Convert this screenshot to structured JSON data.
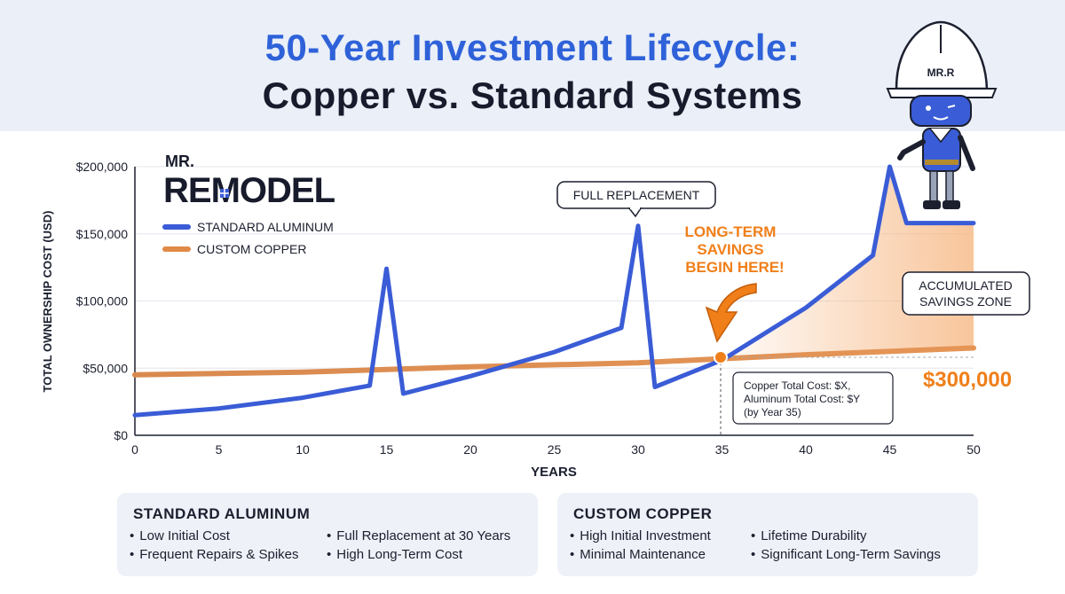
{
  "title": {
    "line1": "50-Year Investment Lifecycle:",
    "line2": "Copper vs. Standard Systems"
  },
  "brand": {
    "logo_top": "MR.",
    "logo_main": "REMODEL",
    "mascot_helmet_text": "MR.R"
  },
  "colors": {
    "aluminum": "#3a5cd6",
    "copper": "#e08a47",
    "accent_orange": "#f07f1a",
    "savings_fill": "#f6b27a",
    "title_blue": "#2f62d9"
  },
  "chart_data": {
    "type": "line",
    "xlabel": "YEARS",
    "ylabel": "TOTAL OWNERSHIP COST (USD)",
    "xlim": [
      0,
      50
    ],
    "ylim": [
      0,
      200000
    ],
    "x_ticks": [
      "0",
      "5",
      "10",
      "15",
      "20",
      "25",
      "30",
      "35",
      "40",
      "45",
      "50"
    ],
    "y_ticks": [
      "$0",
      "$50,000",
      "$100,000",
      "$150,000",
      "$200,000"
    ],
    "grid": "horizontal",
    "legend": "top-left",
    "series": [
      {
        "name": "STANDARD ALUMINUM",
        "points": [
          [
            0,
            15000
          ],
          [
            5,
            20000
          ],
          [
            10,
            28000
          ],
          [
            14,
            37000
          ],
          [
            15,
            124000
          ],
          [
            16,
            31000
          ],
          [
            20,
            44000
          ],
          [
            25,
            62000
          ],
          [
            29,
            80000
          ],
          [
            30,
            156000
          ],
          [
            31,
            36000
          ],
          [
            35,
            56000
          ],
          [
            40,
            95000
          ],
          [
            44,
            134000
          ],
          [
            45,
            200000
          ],
          [
            46,
            158000
          ],
          [
            50,
            158000
          ]
        ]
      },
      {
        "name": "CUSTOM COPPER",
        "points": [
          [
            0,
            45000
          ],
          [
            10,
            47000
          ],
          [
            20,
            51000
          ],
          [
            30,
            54000
          ],
          [
            35,
            57000
          ],
          [
            40,
            60000
          ],
          [
            50,
            65000
          ]
        ]
      }
    ],
    "annotations": {
      "full_replacement": "FULL REPLACEMENT",
      "savings_begin": "LONG-TERM SAVINGS BEGIN HERE!",
      "savings_zone": "ACCUMULATED SAVINGS ZONE",
      "savings_amount": "$300,000",
      "crossover_tooltip": [
        "Copper Total Cost: $X,",
        "Aluminum Total Cost: $Y",
        "(by Year 35)"
      ]
    }
  },
  "panels": {
    "aluminum": {
      "title": "STANDARD ALUMINUM",
      "bullets": [
        "Low Initial Cost",
        "Full Replacement at 30 Years",
        "Frequent Repairs & Spikes",
        "High Long-Term Cost"
      ]
    },
    "copper": {
      "title": "CUSTOM COPPER",
      "bullets": [
        "High Initial Investment",
        "Lifetime Durability",
        "Minimal Maintenance",
        "Significant Long-Term Savings"
      ]
    }
  }
}
